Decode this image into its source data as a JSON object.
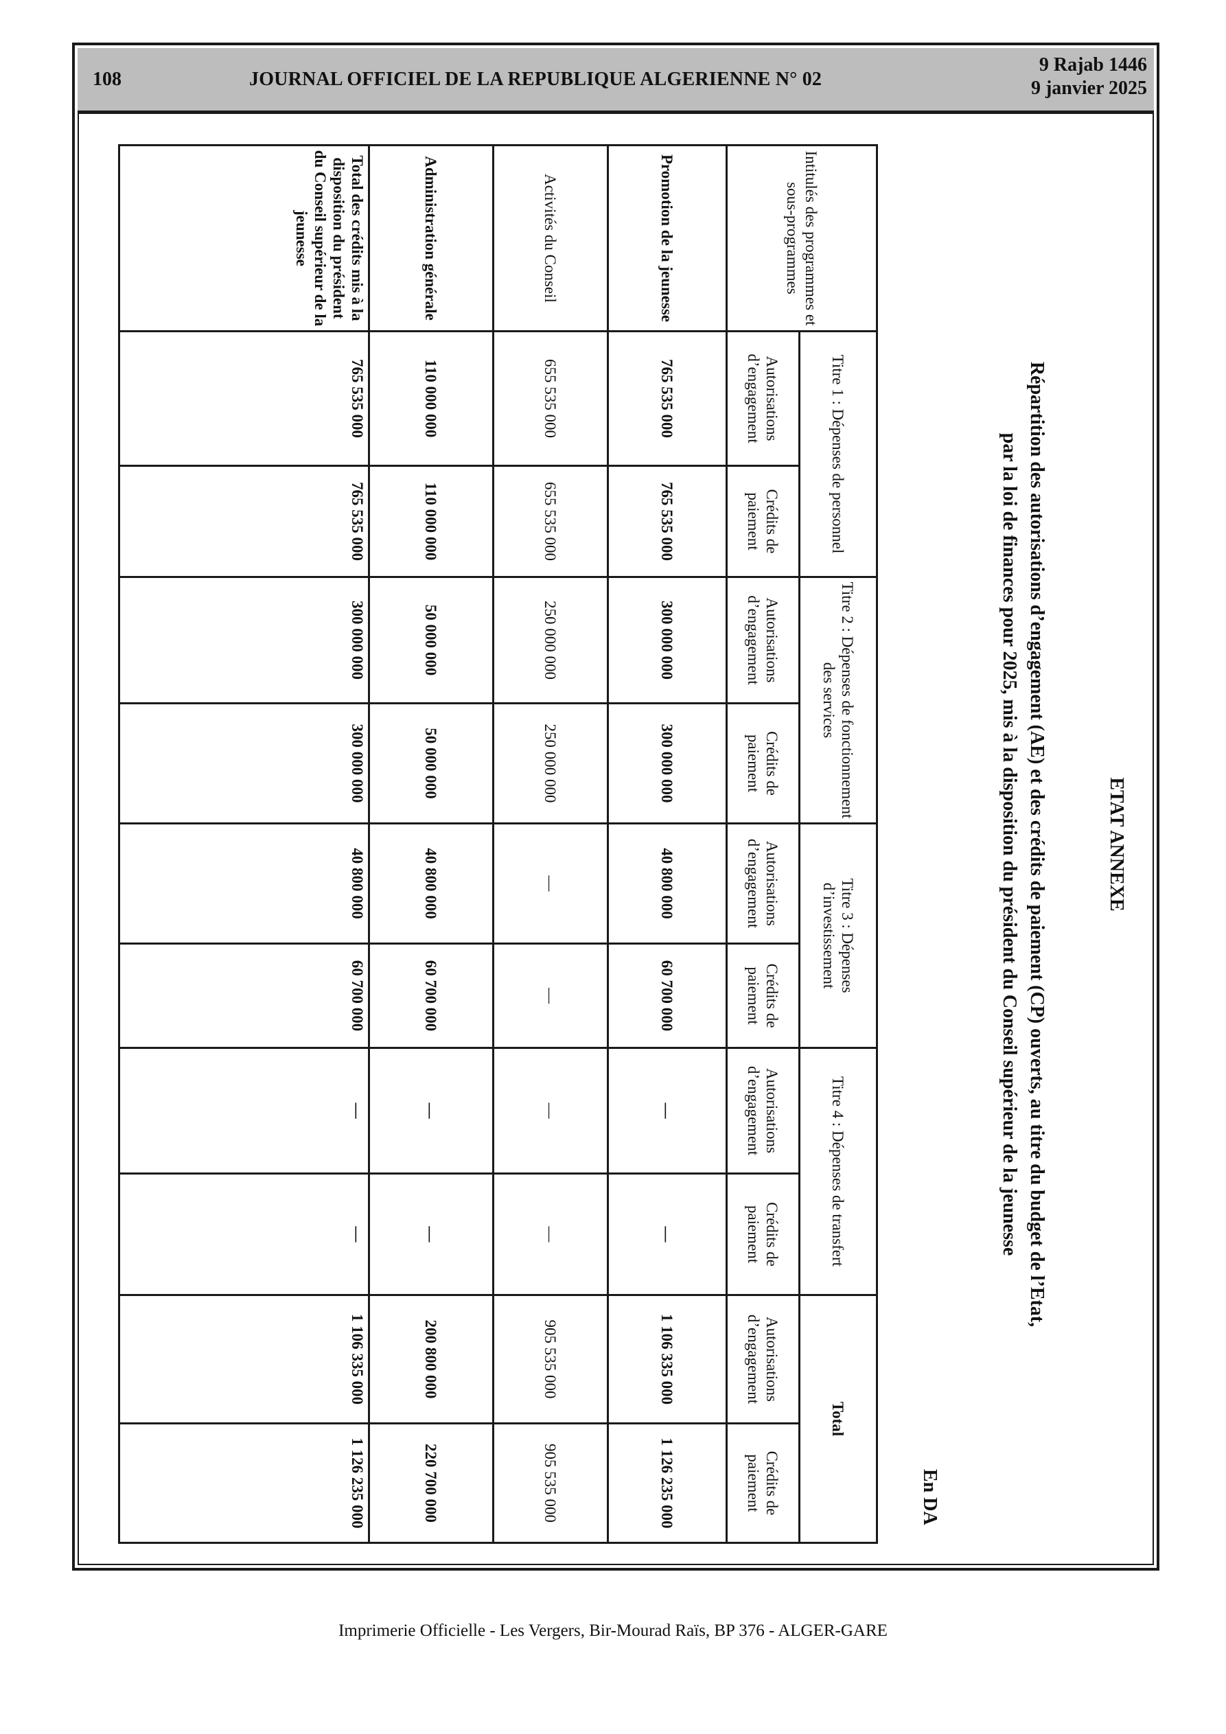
{
  "header": {
    "page_number": "108",
    "journal_title": "JOURNAL OFFICIEL DE LA REPUBLIQUE ALGERIENNE N° 02",
    "date_hijri": "9 Rajab 1446",
    "date_gregorian": "9 janvier 2025"
  },
  "annex": {
    "title": "ETAT ANNEXE",
    "subtitle_line1": "Répartition des autorisations d’engagement (AE) et des crédits de paiement (CP) ouverts, au titre du budget de l’Etat,",
    "subtitle_line2": "par la loi de finances pour 2025, mis à la disposition du président du Conseil supérieur de la jeunesse",
    "unit": "En DA"
  },
  "table": {
    "row_header": "Intitulés des programmes et sous-programmes",
    "groups": [
      {
        "label": "Titre 1 : Dépenses de personnel"
      },
      {
        "label": "Titre 2 : Dépenses de fonctionnement des services"
      },
      {
        "label": "Titre 3 : Dépenses d’investissement"
      },
      {
        "label": "Titre 4 : Dépenses de transfert"
      },
      {
        "label": "Total"
      }
    ],
    "sub_ae": "Autorisations d’engagement",
    "sub_cp": "Crédits de paiement",
    "rows": [
      {
        "label": "Promotion de la jeunesse",
        "bold": true,
        "values": [
          "765 535 000",
          "765 535 000",
          "300 000 000",
          "300 000 000",
          "40 800 000",
          "60 700 000",
          "—",
          "—",
          "1 106 335 000",
          "1 126 235 000"
        ]
      },
      {
        "label": "Activités du Conseil",
        "bold": false,
        "values": [
          "655 535 000",
          "655 535 000",
          "250 000 000",
          "250 000 000",
          "—",
          "—",
          "—",
          "—",
          "905 535 000",
          "905 535 000"
        ]
      },
      {
        "label": "Administration générale",
        "bold": true,
        "values": [
          "110 000 000",
          "110 000 000",
          "50 000 000",
          "50 000 000",
          "40 800 000",
          "60 700 000",
          "—",
          "—",
          "200 800 000",
          "220 700 000"
        ]
      },
      {
        "label": "Total des crédits mis à la disposition du président du Conseil supérieur de la jeunesse",
        "bold": true,
        "values": [
          "765 535 000",
          "765 535 000",
          "300 000 000",
          "300 000 000",
          "40 800 000",
          "60 700 000",
          "—",
          "—",
          "1 106 335 000",
          "1 126 235 000"
        ]
      }
    ]
  },
  "footer": {
    "text": "Imprimerie Officielle - Les Vergers, Bir-Mourad Raïs, BP 376 - ALGER-GARE"
  }
}
